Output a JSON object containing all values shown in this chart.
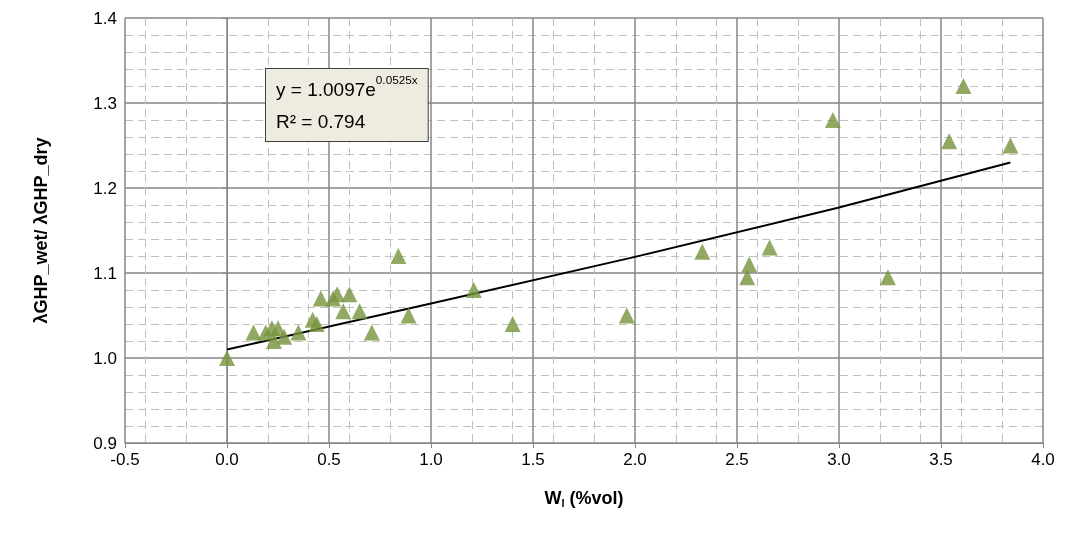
{
  "chart_data": {
    "type": "scatter",
    "xlabel": "W$_{l}$ (%vol)",
    "ylabel": "λGHP_wet/ λGHP_dry",
    "xlim": [
      -0.5,
      4.0
    ],
    "xticks": [
      {
        "value": -0.5,
        "label": "-0.5"
      },
      {
        "value": 0,
        "label": "0.0"
      },
      {
        "value": 0.5,
        "label": "0.5"
      },
      {
        "value": 1,
        "label": "1.0"
      },
      {
        "value": 1.5,
        "label": "1.5"
      },
      {
        "value": 2,
        "label": "2.0"
      },
      {
        "value": 2.5,
        "label": "2.5"
      },
      {
        "value": 3,
        "label": "3.0"
      },
      {
        "value": 3.5,
        "label": "3.5"
      },
      {
        "value": 4,
        "label": "4.0"
      }
    ],
    "ylim": [
      0.9,
      1.4
    ],
    "yticks": [
      0.9,
      {
        "value": 1,
        "label": "1.0"
      },
      1.1,
      1.2,
      1.3,
      1.4
    ],
    "grid": true,
    "marker": "triangle",
    "series": [
      {
        "color": "#77933c",
        "x": [
          0.0,
          0.13,
          0.19,
          0.22,
          0.23,
          0.25,
          0.28,
          0.35,
          0.42,
          0.44,
          0.46,
          0.52,
          0.54,
          0.57,
          0.6,
          0.65,
          0.71,
          0.84,
          0.89,
          1.21,
          1.4,
          1.96,
          2.33,
          2.55,
          2.56,
          2.66,
          2.97,
          3.24,
          3.54,
          3.61,
          3.84
        ],
        "values": [
          1.0,
          1.03,
          1.03,
          1.035,
          1.02,
          1.035,
          1.025,
          1.03,
          1.045,
          1.04,
          1.07,
          1.07,
          1.075,
          1.055,
          1.075,
          1.055,
          1.03,
          1.12,
          1.05,
          1.08,
          1.04,
          1.05,
          1.125,
          1.095,
          1.11,
          1.13,
          1.28,
          1.095,
          1.255,
          1.32,
          1.25
        ]
      },
      {
        "type": "line",
        "color": "#000000",
        "marker": "none",
        "line_style": "solid",
        "x": [
          0,
          1,
          2,
          3,
          3.84
        ],
        "values": [
          1.01,
          1.064,
          1.119,
          1.177,
          1.23
        ]
      }
    ],
    "annotations": [
      "y = 1.0097e$^{0.0525x}$\nR² = 0.794"
    ]
  }
}
